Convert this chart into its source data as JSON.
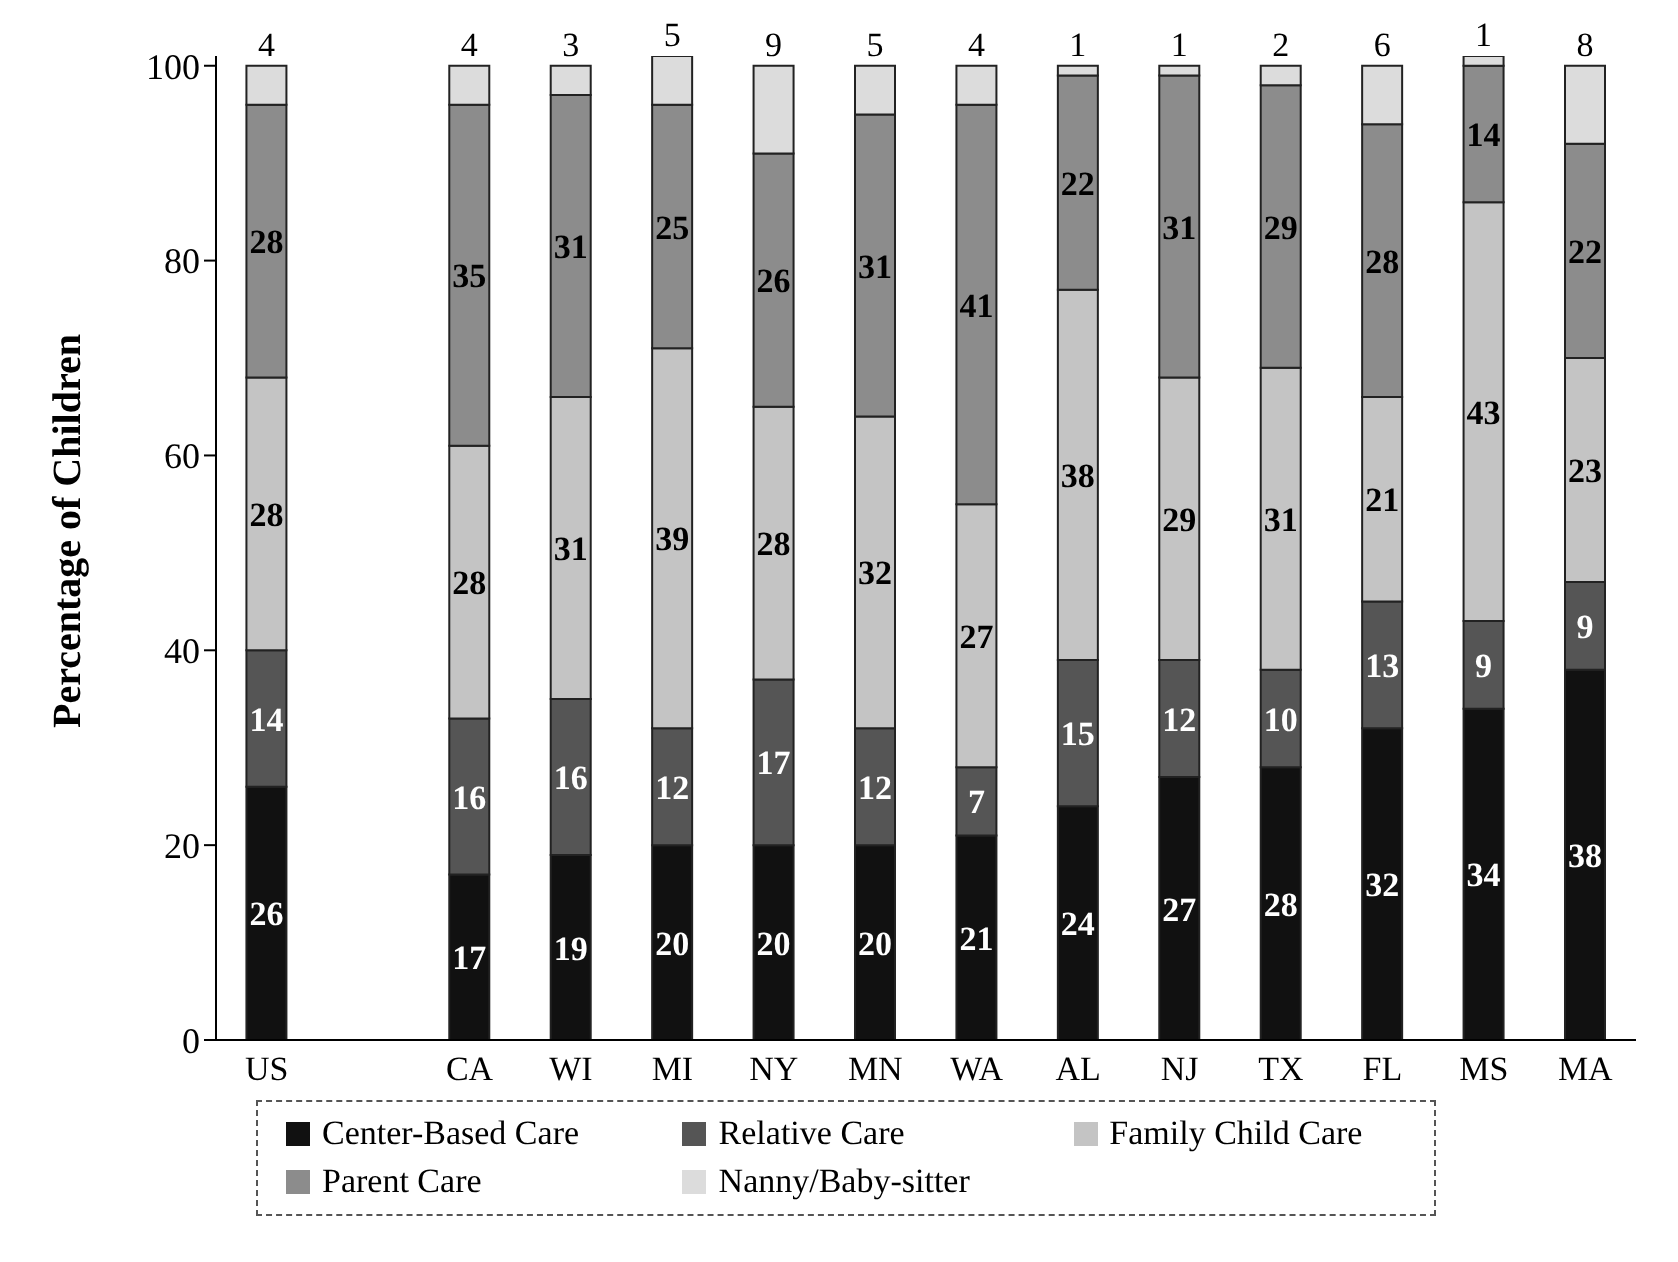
{
  "chart_data": {
    "type": "bar",
    "stacked": true,
    "ylabel": "Percentage of Children",
    "categories": [
      "US",
      null,
      "CA",
      "WI",
      "MI",
      "NY",
      "MN",
      "WA",
      "AL",
      "NJ",
      "TX",
      "FL",
      "MS",
      "MA"
    ],
    "series": [
      {
        "name": "Center-Based Care",
        "color": "#111111",
        "values": [
          26,
          null,
          17,
          19,
          20,
          20,
          20,
          21,
          24,
          27,
          28,
          32,
          34,
          38
        ]
      },
      {
        "name": "Relative Care",
        "color": "#555555",
        "values": [
          14,
          null,
          16,
          16,
          12,
          17,
          12,
          7,
          15,
          12,
          10,
          13,
          9,
          9
        ]
      },
      {
        "name": "Family Child Care",
        "color": "#c4c4c4",
        "values": [
          28,
          null,
          28,
          31,
          39,
          28,
          32,
          27,
          38,
          29,
          31,
          21,
          43,
          23
        ]
      },
      {
        "name": "Parent Care",
        "color": "#8c8c8c",
        "values": [
          28,
          null,
          35,
          31,
          25,
          26,
          31,
          41,
          22,
          31,
          29,
          28,
          14,
          22
        ]
      },
      {
        "name": "Nanny/Baby-sitter",
        "color": "#dcdcdc",
        "values": [
          4,
          null,
          4,
          3,
          5,
          9,
          5,
          4,
          1,
          1,
          2,
          6,
          1,
          8
        ]
      }
    ],
    "ylim": [
      0,
      101
    ],
    "yticks": [
      0,
      20,
      40,
      60,
      80,
      100
    ],
    "grid": false,
    "data_labels": true,
    "legend": "bottom"
  }
}
